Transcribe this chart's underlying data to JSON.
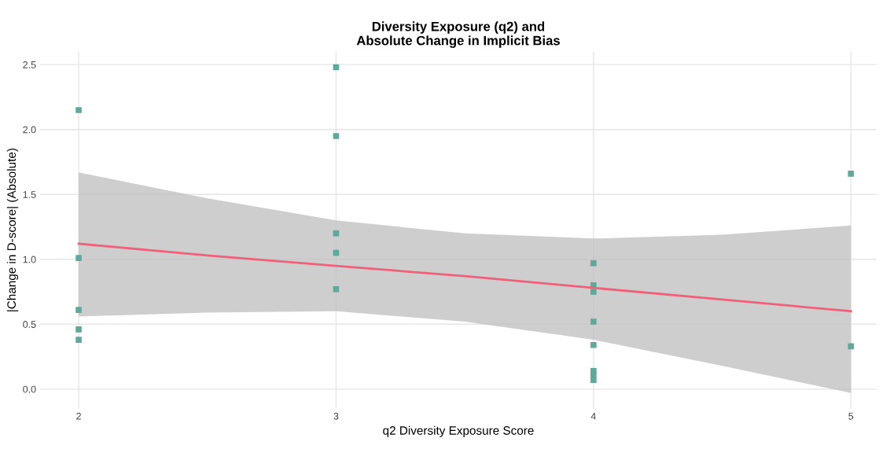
{
  "chart_data": {
    "type": "scatter",
    "title": "Diversity Exposure (q2) and\nAbsolute Change in Implicit Bias",
    "xlabel": "q2 Diversity Exposure Score",
    "ylabel": "|Change in D-score| (Absolute)",
    "series": [
      {
        "color": "#5fa99a",
        "marker": "square",
        "x": [
          2,
          2,
          2,
          2,
          2,
          3,
          3,
          3,
          3,
          3,
          4,
          4,
          4,
          4,
          4,
          4,
          4,
          4,
          5,
          5
        ],
        "values": [
          2.15,
          1.01,
          0.61,
          0.46,
          0.38,
          2.48,
          1.95,
          1.2,
          1.05,
          0.77,
          0.97,
          0.8,
          0.75,
          0.52,
          0.34,
          0.14,
          0.11,
          0.07,
          1.66,
          0.33
        ]
      },
      {
        "type": "line",
        "color": "#f0607a",
        "x": [
          2,
          2.5,
          3,
          3.5,
          4,
          4.5,
          5
        ],
        "values": [
          1.12,
          1.03,
          0.95,
          0.87,
          0.78,
          0.69,
          0.6
        ],
        "lower": [
          0.56,
          0.59,
          0.6,
          0.52,
          0.38,
          0.18,
          -0.03
        ],
        "upper": [
          1.67,
          1.47,
          1.3,
          1.2,
          1.16,
          1.19,
          1.26
        ]
      }
    ],
    "xlim": [
      1.85,
      5.1
    ],
    "ylim": [
      -0.15,
      2.6
    ],
    "xticks": [
      2,
      3,
      4,
      5
    ],
    "yticks": [
      {
        "value": 0,
        "label": "0.0"
      },
      {
        "value": 0.5,
        "label": "0.5"
      },
      {
        "value": 1,
        "label": "1.0"
      },
      {
        "value": 1.5,
        "label": "1.5"
      },
      {
        "value": 2,
        "label": "2.0"
      },
      {
        "value": 2.5,
        "label": "2.5"
      }
    ],
    "grid": true
  }
}
